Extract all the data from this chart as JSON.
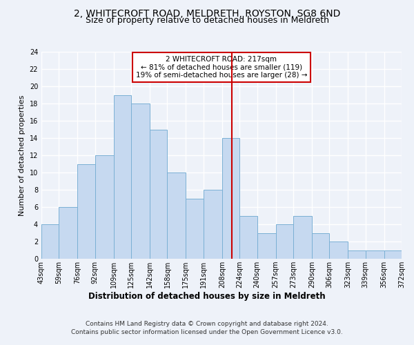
{
  "title1": "2, WHITECROFT ROAD, MELDRETH, ROYSTON, SG8 6ND",
  "title2": "Size of property relative to detached houses in Meldreth",
  "xlabel": "Distribution of detached houses by size in Meldreth",
  "ylabel": "Number of detached properties",
  "footer1": "Contains HM Land Registry data © Crown copyright and database right 2024.",
  "footer2": "Contains public sector information licensed under the Open Government Licence v3.0.",
  "bin_edges": [
    43,
    59,
    76,
    92,
    109,
    125,
    142,
    158,
    175,
    191,
    208,
    224,
    240,
    257,
    273,
    290,
    306,
    323,
    339,
    356,
    372
  ],
  "bin_labels": [
    "43sqm",
    "59sqm",
    "76sqm",
    "92sqm",
    "109sqm",
    "125sqm",
    "142sqm",
    "158sqm",
    "175sqm",
    "191sqm",
    "208sqm",
    "224sqm",
    "240sqm",
    "257sqm",
    "273sqm",
    "290sqm",
    "306sqm",
    "323sqm",
    "339sqm",
    "356sqm",
    "372sqm"
  ],
  "heights": [
    4,
    6,
    11,
    12,
    19,
    18,
    15,
    10,
    7,
    8,
    14,
    5,
    3,
    4,
    5,
    3,
    2,
    1,
    1,
    1
  ],
  "bar_color": "#c6d9f0",
  "bar_edge_color": "#7ab0d4",
  "vline_x": 217,
  "vline_color": "#cc0000",
  "ylim": [
    0,
    24
  ],
  "yticks": [
    0,
    2,
    4,
    6,
    8,
    10,
    12,
    14,
    16,
    18,
    20,
    22,
    24
  ],
  "annotation_title": "2 WHITECROFT ROAD: 217sqm",
  "annotation_line1": "← 81% of detached houses are smaller (119)",
  "annotation_line2": "19% of semi-detached houses are larger (28) →",
  "annotation_box_color": "#cc0000",
  "background_color": "#eef2f9",
  "grid_color": "#ffffff",
  "title1_fontsize": 10,
  "title2_fontsize": 9,
  "xlabel_fontsize": 8.5,
  "ylabel_fontsize": 8,
  "tick_fontsize": 7,
  "footer_fontsize": 6.5,
  "ann_fontsize": 7.5
}
